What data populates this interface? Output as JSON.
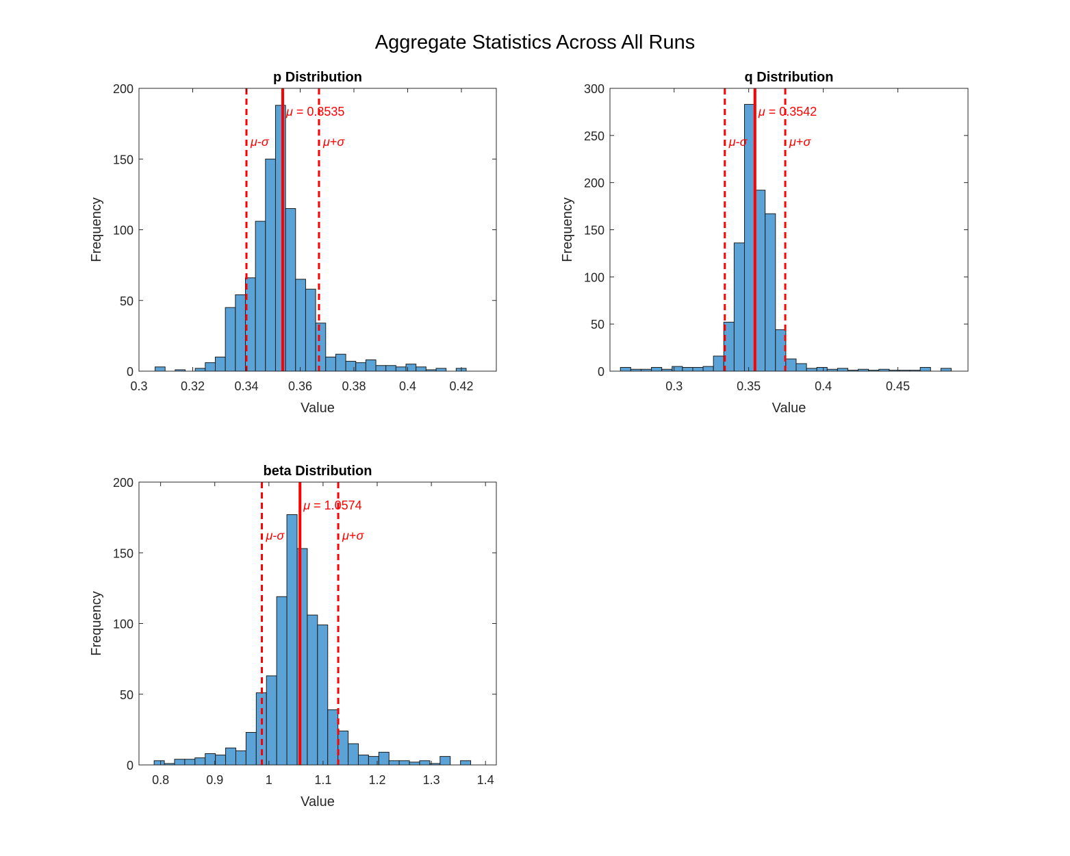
{
  "figure": {
    "title": "Aggregate Statistics Across All Runs"
  },
  "colors": {
    "bar_fill": "#5ba3d6",
    "bar_edge": "#1b1b1b",
    "mean_line": "#ff0000",
    "axis": "#262626"
  },
  "chart_data": [
    {
      "type": "bar",
      "title": "p Distribution",
      "xlabel": "Value",
      "ylabel": "Frequency",
      "xlim": [
        0.3,
        0.433
      ],
      "ylim": [
        0,
        200
      ],
      "xticks": [
        0.3,
        0.32,
        0.34,
        0.36,
        0.38,
        0.4,
        0.42
      ],
      "xtick_labels": [
        "0.3",
        "0.32",
        "0.34",
        "0.36",
        "0.38",
        "0.4",
        "0.42"
      ],
      "yticks": [
        0,
        50,
        100,
        150,
        200
      ],
      "ytick_labels": [
        "0",
        "50",
        "100",
        "150",
        "200"
      ],
      "bin_start": 0.306,
      "bin_width": 0.003735,
      "counts": [
        3,
        0,
        1,
        0,
        2,
        6,
        10,
        45,
        54,
        66,
        106,
        150,
        188,
        115,
        65,
        58,
        34,
        10,
        12,
        7,
        6,
        8,
        4,
        4,
        3,
        5,
        3,
        1,
        2,
        0,
        2,
        0
      ],
      "mean": 0.3535,
      "sigma_low": 0.34,
      "sigma_high": 0.367,
      "mean_label": "= 0.3535",
      "low_label": "-",
      "high_label": "+",
      "mu_symbol": "μ",
      "sigma_symbol": "σ"
    },
    {
      "type": "bar",
      "title": "q Distribution",
      "xlabel": "Value",
      "ylabel": "Frequency",
      "xlim": [
        0.257,
        0.497
      ],
      "ylim": [
        0,
        300
      ],
      "xticks": [
        0.3,
        0.35,
        0.4,
        0.45
      ],
      "xtick_labels": [
        "0.3",
        "0.35",
        "0.4",
        "0.45"
      ],
      "yticks": [
        0,
        50,
        100,
        150,
        200,
        250,
        300
      ],
      "ytick_labels": [
        "0",
        "50",
        "100",
        "150",
        "200",
        "250",
        "300"
      ],
      "bin_start": 0.264,
      "bin_width": 0.00693,
      "counts": [
        4,
        2,
        2,
        4,
        2,
        5,
        4,
        4,
        5,
        16,
        52,
        136,
        283,
        192,
        167,
        44,
        13,
        8,
        3,
        4,
        2,
        3,
        1,
        2,
        1,
        2,
        1,
        1,
        1,
        4,
        0,
        3
      ],
      "mean": 0.3542,
      "sigma_low": 0.334,
      "sigma_high": 0.3745,
      "mean_label": "= 0.3542",
      "low_label": "-",
      "high_label": "+",
      "mu_symbol": "μ",
      "sigma_symbol": "σ"
    },
    {
      "type": "bar",
      "title": "beta Distribution",
      "xlabel": "Value",
      "ylabel": "Frequency",
      "xlim": [
        0.76,
        1.42
      ],
      "ylim": [
        0,
        200
      ],
      "xticks": [
        0.8,
        0.9,
        1.0,
        1.1,
        1.2,
        1.3,
        1.4
      ],
      "xtick_labels": [
        "0.8",
        "0.9",
        "1",
        "1.1",
        "1.2",
        "1.3",
        "1.4"
      ],
      "yticks": [
        0,
        50,
        100,
        150,
        200
      ],
      "ytick_labels": [
        "0",
        "50",
        "100",
        "150",
        "200"
      ],
      "bin_start": 0.788,
      "bin_width": 0.01886,
      "counts": [
        3,
        1,
        4,
        4,
        5,
        8,
        7,
        12,
        10,
        23,
        51,
        63,
        119,
        177,
        153,
        106,
        99,
        39,
        24,
        15,
        7,
        6,
        9,
        3,
        3,
        2,
        3,
        1,
        6,
        0,
        3
      ],
      "mean": 1.0574,
      "sigma_low": 0.987,
      "sigma_high": 1.128,
      "mean_label": "= 1.0574",
      "low_label": "-",
      "high_label": "+",
      "mu_symbol": "μ",
      "sigma_symbol": "σ"
    }
  ]
}
